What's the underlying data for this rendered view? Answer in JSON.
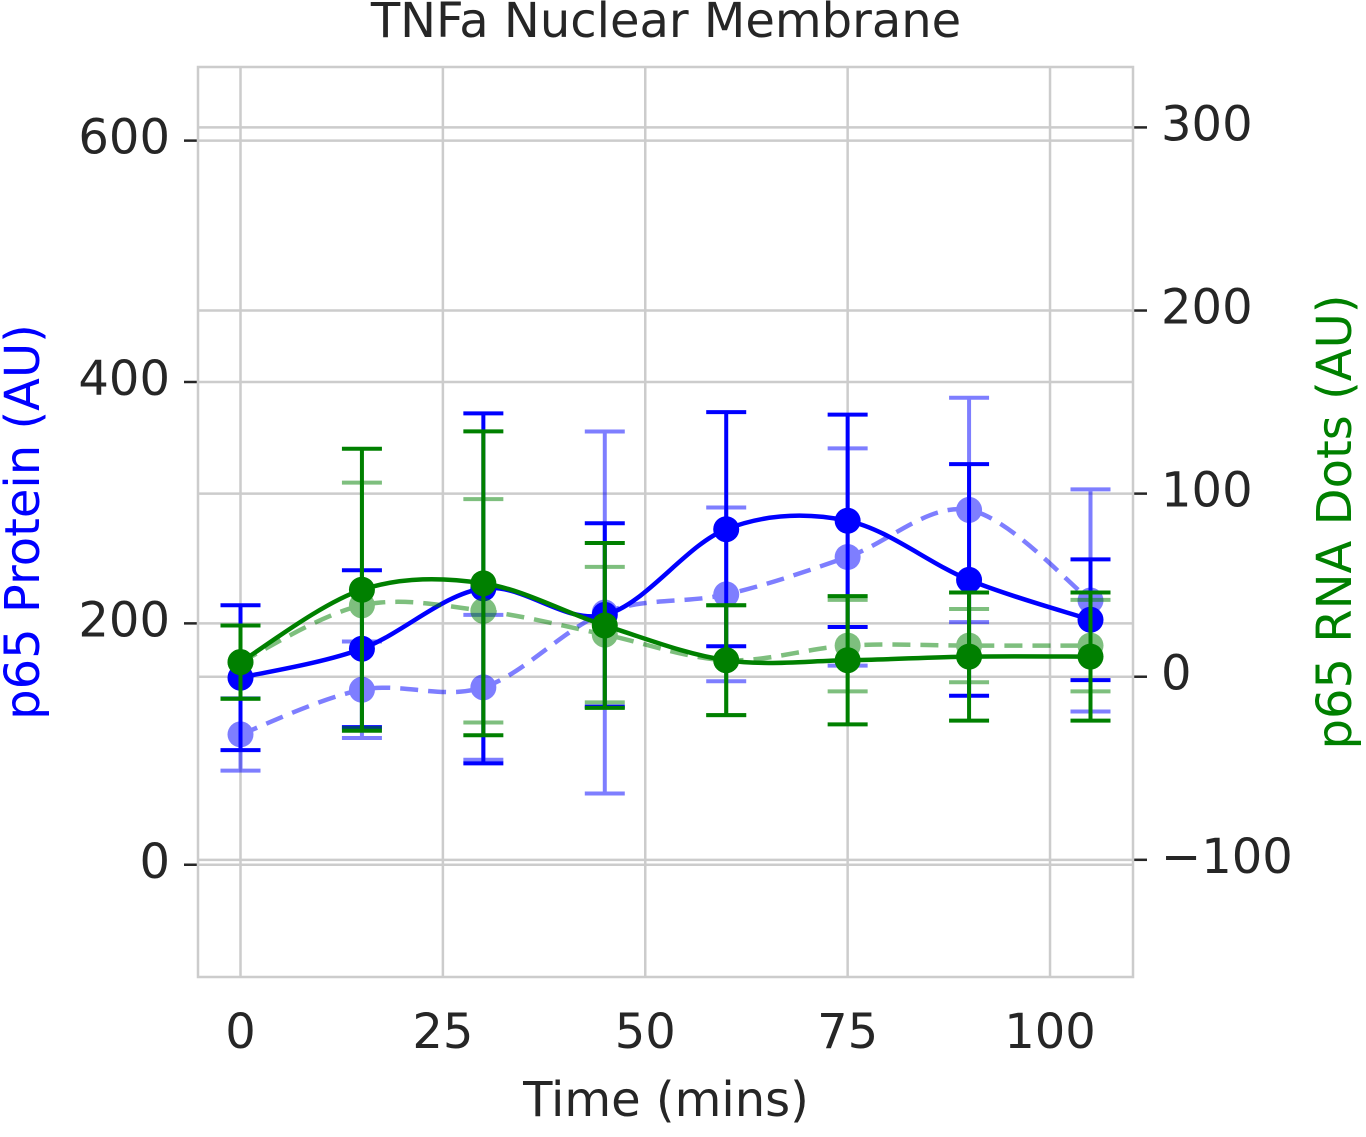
{
  "chart_data": {
    "type": "line",
    "title": "TNFa Nuclear Membrane",
    "x_label": "Time (mins)",
    "y_label": "p65 Protein (AU)",
    "y2_label": "p65 RNA Dots (AU)",
    "y_label_color": "#0000ff",
    "y2_label_color": "#008000",
    "x": [
      0,
      15,
      30,
      45,
      60,
      75,
      90,
      105
    ],
    "xlim": [
      -5.25,
      110.25
    ],
    "xticks": [
      0,
      25,
      50,
      75,
      100
    ],
    "ylim": [
      -93,
      661
    ],
    "yticks": [
      0,
      200,
      400,
      600
    ],
    "y2lim": [
      -164,
      333
    ],
    "y2ticks": [
      {
        "value": -100,
        "label": "−100"
      },
      0,
      100,
      200,
      300
    ],
    "grid": true,
    "series": [
      {
        "color": "#0000ff",
        "linestyle": "dashed",
        "alpha": 0.5,
        "axis": "y",
        "values": [
          108,
          145,
          147,
          209,
          224,
          255,
          294,
          219
        ],
        "errors": [
          30,
          40,
          60,
          150,
          72,
          90,
          93,
          92
        ]
      },
      {
        "color": "#0000ff",
        "linestyle": "solid",
        "alpha": 1,
        "axis": "y",
        "values": [
          155,
          179,
          229,
          207,
          278,
          285,
          236,
          203
        ],
        "errors": [
          60,
          65,
          145,
          76,
          97,
          88,
          96,
          50
        ]
      },
      {
        "color": "#008000",
        "linestyle": "dashed",
        "alpha": 0.5,
        "axis": "y2",
        "values": [
          8,
          39,
          36,
          23,
          9,
          17,
          17,
          17
        ],
        "errors": [
          20,
          67,
          61,
          37,
          30,
          25,
          20,
          25
        ]
      },
      {
        "color": "#008000",
        "linestyle": "solid",
        "alpha": 1,
        "axis": "y2",
        "values": [
          8,
          47.5,
          51,
          28,
          9,
          9,
          11,
          11
        ],
        "errors": [
          20,
          77,
          83,
          45,
          30,
          35,
          35,
          35
        ]
      }
    ]
  }
}
